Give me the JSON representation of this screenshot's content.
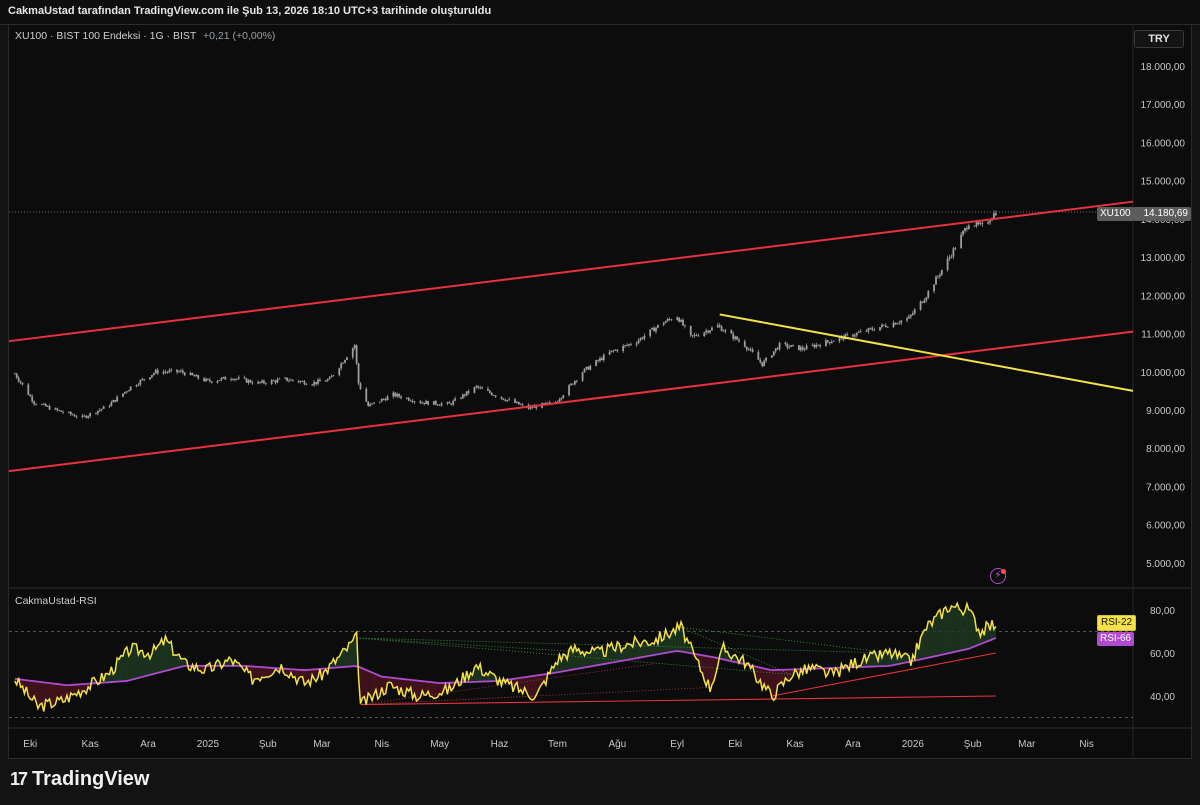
{
  "header": {
    "attribution": "CakmaUstad tarafından TradingView.com ile Şub 13, 2026 18:10 UTC+3 tarihinde oluşturuldu"
  },
  "legend": {
    "symbol_line": "XU100 · BIST 100 Endeksi · 1G · BIST",
    "change": "+0,21 (+0,00%)",
    "indicator": "CakmaUstad-RSI"
  },
  "currency_button": "TRY",
  "price_tags": {
    "ticker": "XU100",
    "last_price": "14.180,69",
    "rsi_short": "RSI-22",
    "rsi_long": "RSI-66"
  },
  "footer": {
    "brand": "TradingView",
    "mark": "17"
  },
  "colors": {
    "background": "#0c0c0c",
    "candle": "#9e9e9e",
    "channel": "#e8323d",
    "trendline": "#f3e24a",
    "rsi_fast": "#f3e24a",
    "rsi_slow": "#b04ad0",
    "fill_up": "#1f3a22",
    "fill_down": "#4a1420"
  },
  "icons": {
    "alert": "lightning-alert-icon",
    "logo": "tradingview-logo-icon"
  },
  "chart_data": [
    {
      "type": "candlestick",
      "title": "XU100 · BIST 100 Endeksi · 1G · BIST",
      "y_axis_labels": [
        "18.000,00",
        "17.000,00",
        "16.000,00",
        "15.000,00",
        "14.000,00",
        "13.000,00",
        "12.000,00",
        "11.000,00",
        "10.000,00",
        "9.000,00",
        "8.000,00",
        "7.000,00",
        "6.000,00",
        "5.000,00"
      ],
      "ylim": [
        4700,
        18700
      ],
      "x_labels": [
        "Eki",
        "Kas",
        "Ara",
        "2025",
        "Şub",
        "Mar",
        "Nis",
        "May",
        "Haz",
        "Tem",
        "Ağu",
        "Eyl",
        "Eki",
        "Kas",
        "Ara",
        "2026",
        "Şub",
        "Mar",
        "Nis"
      ],
      "x_label_dates": [
        "2024-10-01",
        "2024-11-01",
        "2024-12-01",
        "2025-01-01",
        "2025-02-01",
        "2025-03-01",
        "2025-04-01",
        "2025-05-01",
        "2025-06-01",
        "2025-07-01",
        "2025-08-01",
        "2025-09-01",
        "2025-10-01",
        "2025-11-01",
        "2025-12-01",
        "2026-01-01",
        "2026-02-01",
        "2026-03-01",
        "2026-04-01"
      ],
      "close_path": [
        [
          "2024-09-23",
          9950
        ],
        [
          "2024-10-03",
          9200
        ],
        [
          "2024-10-14",
          9000
        ],
        [
          "2024-10-28",
          8800
        ],
        [
          "2024-11-10",
          9100
        ],
        [
          "2024-11-22",
          9600
        ],
        [
          "2024-12-05",
          10000
        ],
        [
          "2024-12-18",
          10000
        ],
        [
          "2025-01-01",
          9750
        ],
        [
          "2025-01-13",
          9850
        ],
        [
          "2025-01-27",
          9700
        ],
        [
          "2025-02-10",
          9800
        ],
        [
          "2025-02-24",
          9700
        ],
        [
          "2025-03-05",
          9800
        ],
        [
          "2025-03-18",
          10700
        ],
        [
          "2025-03-20",
          9700
        ],
        [
          "2025-03-25",
          9100
        ],
        [
          "2025-04-07",
          9400
        ],
        [
          "2025-04-22",
          9200
        ],
        [
          "2025-05-06",
          9150
        ],
        [
          "2025-05-20",
          9600
        ],
        [
          "2025-06-03",
          9300
        ],
        [
          "2025-06-16",
          9050
        ],
        [
          "2025-06-30",
          9200
        ],
        [
          "2025-07-14",
          10000
        ],
        [
          "2025-07-28",
          10500
        ],
        [
          "2025-08-11",
          10800
        ],
        [
          "2025-08-25",
          11300
        ],
        [
          "2025-09-01",
          11450
        ],
        [
          "2025-09-08",
          10900
        ],
        [
          "2025-09-22",
          11200
        ],
        [
          "2025-10-06",
          10700
        ],
        [
          "2025-10-15",
          10200
        ],
        [
          "2025-10-24",
          10700
        ],
        [
          "2025-11-05",
          10600
        ],
        [
          "2025-11-19",
          10800
        ],
        [
          "2025-12-03",
          11000
        ],
        [
          "2025-12-17",
          11200
        ],
        [
          "2025-12-30",
          11400
        ],
        [
          "2026-01-08",
          12000
        ],
        [
          "2026-01-20",
          13000
        ],
        [
          "2026-01-30",
          13900
        ],
        [
          "2026-02-06",
          13800
        ],
        [
          "2026-02-13",
          14180.69
        ]
      ],
      "last_price": 14180.69,
      "lines": [
        {
          "name": "channel-upper",
          "color": "#e8323d",
          "from": [
            "2024-09-20",
            10800
          ],
          "to": [
            "2026-04-25",
            14450
          ]
        },
        {
          "name": "channel-lower",
          "color": "#e8323d",
          "from": [
            "2024-09-20",
            7400
          ],
          "to": [
            "2026-04-25",
            11050
          ]
        },
        {
          "name": "trendline",
          "color": "#f3e24a",
          "from": [
            "2025-09-23",
            11500
          ],
          "to": [
            "2026-04-25",
            9500
          ]
        }
      ]
    },
    {
      "type": "line",
      "title": "CakmaUstad-RSI",
      "y_axis_labels": [
        "80,00",
        "60,00",
        "40,00"
      ],
      "ylim": [
        28,
        90
      ],
      "reference_levels": [
        70,
        30
      ],
      "series": [
        {
          "name": "RSI-22",
          "color": "#f3e24a",
          "points": [
            [
              "2024-09-23",
              48
            ],
            [
              "2024-10-05",
              35
            ],
            [
              "2024-10-18",
              38
            ],
            [
              "2024-10-30",
              44
            ],
            [
              "2024-11-10",
              50
            ],
            [
              "2024-11-22",
              62
            ],
            [
              "2024-12-03",
              60
            ],
            [
              "2024-12-10",
              66
            ],
            [
              "2024-12-20",
              55
            ],
            [
              "2024-12-31",
              52
            ],
            [
              "2025-01-13",
              57
            ],
            [
              "2025-01-24",
              48
            ],
            [
              "2025-02-08",
              54
            ],
            [
              "2025-02-20",
              46
            ],
            [
              "2025-03-01",
              50
            ],
            [
              "2025-03-12",
              60
            ],
            [
              "2025-03-19",
              67
            ],
            [
              "2025-03-21",
              36
            ],
            [
              "2025-04-05",
              45
            ],
            [
              "2025-04-20",
              40
            ],
            [
              "2025-05-06",
              43
            ],
            [
              "2025-05-20",
              54
            ],
            [
              "2025-06-03",
              46
            ],
            [
              "2025-06-20",
              40
            ],
            [
              "2025-07-01",
              57
            ],
            [
              "2025-07-10",
              62
            ],
            [
              "2025-07-22",
              60
            ],
            [
              "2025-08-05",
              64
            ],
            [
              "2025-08-20",
              66
            ],
            [
              "2025-09-03",
              72
            ],
            [
              "2025-09-10",
              58
            ],
            [
              "2025-09-18",
              44
            ],
            [
              "2025-09-25",
              62
            ],
            [
              "2025-10-06",
              56
            ],
            [
              "2025-10-20",
              40
            ],
            [
              "2025-10-30",
              50
            ],
            [
              "2025-11-10",
              53
            ],
            [
              "2025-11-20",
              50
            ],
            [
              "2025-12-03",
              56
            ],
            [
              "2025-12-20",
              60
            ],
            [
              "2025-12-31",
              56
            ],
            [
              "2026-01-08",
              72
            ],
            [
              "2026-01-20",
              82
            ],
            [
              "2026-01-30",
              80
            ],
            [
              "2026-02-05",
              70
            ],
            [
              "2026-02-13",
              74
            ]
          ]
        },
        {
          "name": "RSI-66",
          "color": "#b04ad0",
          "points": [
            [
              "2024-09-23",
              48
            ],
            [
              "2024-10-20",
              45
            ],
            [
              "2024-11-20",
              47
            ],
            [
              "2024-12-20",
              54
            ],
            [
              "2025-01-20",
              54
            ],
            [
              "2025-02-20",
              52
            ],
            [
              "2025-03-19",
              54
            ],
            [
              "2025-04-01",
              49
            ],
            [
              "2025-05-01",
              46
            ],
            [
              "2025-06-01",
              47
            ],
            [
              "2025-07-01",
              51
            ],
            [
              "2025-08-01",
              56
            ],
            [
              "2025-09-01",
              61
            ],
            [
              "2025-09-20",
              58
            ],
            [
              "2025-10-20",
              52
            ],
            [
              "2025-11-20",
              53
            ],
            [
              "2025-12-20",
              54
            ],
            [
              "2026-01-10",
              58
            ],
            [
              "2026-01-30",
              62
            ],
            [
              "2026-02-13",
              67
            ]
          ]
        }
      ],
      "guide_lines": [
        {
          "name": "support-1",
          "color": "#e8323d",
          "from": [
            "2025-03-21",
            36
          ],
          "to": [
            "2026-02-13",
            40
          ]
        },
        {
          "name": "support-2",
          "color": "#e8323d",
          "from": [
            "2025-10-20",
            40
          ],
          "to": [
            "2026-02-13",
            60
          ]
        }
      ]
    }
  ]
}
